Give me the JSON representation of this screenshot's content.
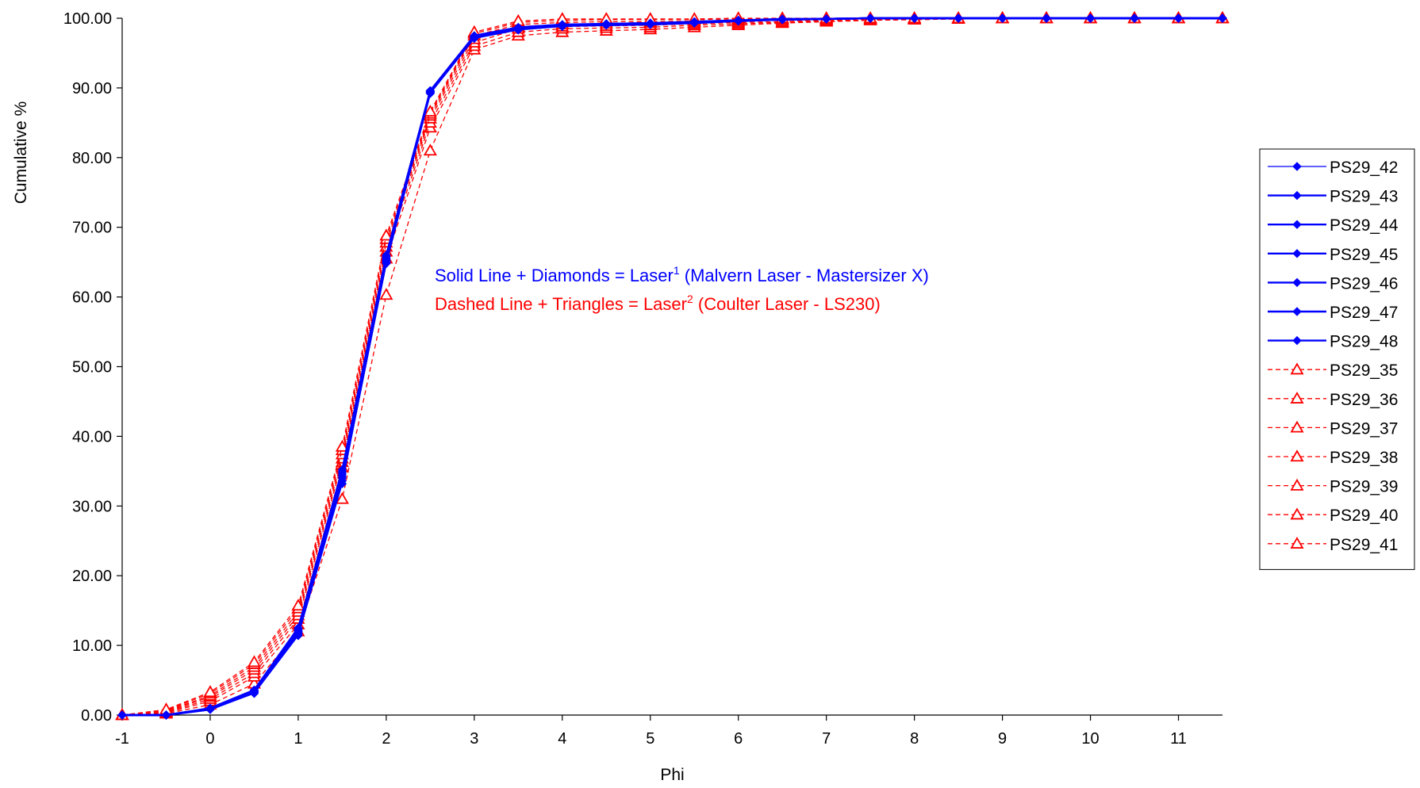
{
  "chart_data": {
    "type": "line",
    "title": "",
    "xlabel": "Phi",
    "ylabel": "Cumulative %",
    "xlim": [
      -1,
      11.5
    ],
    "ylim": [
      0,
      100
    ],
    "x_ticks": [
      "-1",
      "0",
      "1",
      "2",
      "3",
      "4",
      "5",
      "6",
      "7",
      "8",
      "9",
      "10",
      "11"
    ],
    "y_ticks": [
      "0.00",
      "10.00",
      "20.00",
      "30.00",
      "40.00",
      "50.00",
      "60.00",
      "70.00",
      "80.00",
      "90.00",
      "100.00"
    ],
    "grid": false,
    "legend_position": "right",
    "x": [
      -1,
      -0.5,
      0,
      0.5,
      1,
      1.5,
      2,
      2.5,
      3,
      3.5,
      4,
      4.5,
      5,
      5.5,
      6,
      6.5,
      7,
      7.5,
      8,
      8.5,
      9,
      9.5,
      10,
      10.5,
      11,
      11.5
    ],
    "colors": {
      "laser1": "#0000ff",
      "laser2": "#ff0000"
    },
    "annotations": [
      {
        "prefix": "Solid Line + Diamonds = Laser",
        "sup": "1",
        "suffix": " (Malvern Laser - Mastersizer X)",
        "color": "#0000ff"
      },
      {
        "prefix": "Dashed Line + Triangles = Laser",
        "sup": "2",
        "suffix": " (Coulter Laser - LS230)",
        "color": "#ff0000"
      }
    ],
    "series": [
      {
        "name": "PS29_42",
        "style": "solid",
        "marker": "diamond",
        "color": "#0000ff",
        "values": [
          0,
          0,
          0.8,
          3.1,
          11.4,
          33.2,
          64.8,
          89.2,
          97.1,
          98.3,
          98.8,
          99.0,
          99.1,
          99.3,
          99.6,
          99.8,
          99.9,
          100,
          100,
          100,
          100,
          100,
          100,
          100,
          100,
          100
        ]
      },
      {
        "name": "PS29_43",
        "style": "solid",
        "marker": "diamond",
        "color": "#0000ff",
        "values": [
          0,
          0,
          0.8,
          3.2,
          11.6,
          33.6,
          65.0,
          89.3,
          97.2,
          98.4,
          98.9,
          99.0,
          99.1,
          99.3,
          99.6,
          99.8,
          99.9,
          100,
          100,
          100,
          100,
          100,
          100,
          100,
          100,
          100
        ]
      },
      {
        "name": "PS29_44",
        "style": "solid",
        "marker": "diamond",
        "color": "#0000ff",
        "values": [
          0,
          0,
          0.8,
          3.3,
          11.8,
          34.0,
          65.2,
          89.4,
          97.3,
          98.5,
          98.9,
          99.1,
          99.2,
          99.4,
          99.6,
          99.8,
          99.9,
          100,
          100,
          100,
          100,
          100,
          100,
          100,
          100,
          100
        ]
      },
      {
        "name": "PS29_45",
        "style": "solid",
        "marker": "diamond",
        "color": "#0000ff",
        "values": [
          0,
          0,
          0.9,
          3.4,
          12.0,
          34.3,
          65.4,
          89.5,
          97.3,
          98.5,
          99.0,
          99.1,
          99.2,
          99.4,
          99.7,
          99.8,
          99.9,
          100,
          100,
          100,
          100,
          100,
          100,
          100,
          100,
          100
        ]
      },
      {
        "name": "PS29_46",
        "style": "solid",
        "marker": "diamond",
        "color": "#0000ff",
        "values": [
          0,
          0,
          0.9,
          3.4,
          12.1,
          34.6,
          65.6,
          89.5,
          97.4,
          98.6,
          99.0,
          99.2,
          99.3,
          99.4,
          99.7,
          99.8,
          99.9,
          100,
          100,
          100,
          100,
          100,
          100,
          100,
          100,
          100
        ]
      },
      {
        "name": "PS29_47",
        "style": "solid",
        "marker": "diamond",
        "color": "#0000ff",
        "values": [
          0,
          0,
          0.9,
          3.5,
          12.3,
          34.9,
          65.8,
          89.6,
          97.4,
          98.6,
          99.0,
          99.2,
          99.3,
          99.5,
          99.7,
          99.8,
          99.9,
          100,
          100,
          100,
          100,
          100,
          100,
          100,
          100,
          100
        ]
      },
      {
        "name": "PS29_48",
        "style": "solid",
        "marker": "diamond",
        "color": "#0000ff",
        "values": [
          0,
          0,
          1.0,
          3.6,
          12.5,
          35.2,
          66.0,
          89.6,
          97.5,
          98.7,
          99.1,
          99.2,
          99.3,
          99.5,
          99.7,
          99.9,
          99.9,
          100,
          100,
          100,
          100,
          100,
          100,
          100,
          100,
          100
        ]
      },
      {
        "name": "PS29_35",
        "style": "dashed",
        "marker": "triangle",
        "color": "#ff0000",
        "values": [
          0,
          0.2,
          1.5,
          4.5,
          12.0,
          31.0,
          60.3,
          81.0,
          95.5,
          97.5,
          98.0,
          98.2,
          98.4,
          98.7,
          99.0,
          99.3,
          99.5,
          99.7,
          99.8,
          99.9,
          100,
          100,
          100,
          100,
          100,
          100
        ]
      },
      {
        "name": "PS29_36",
        "style": "dashed",
        "marker": "triangle",
        "color": "#ff0000",
        "values": [
          0,
          0.3,
          2.0,
          5.5,
          13.0,
          35.5,
          65.5,
          84.3,
          96.0,
          98.0,
          98.5,
          98.6,
          98.7,
          99.0,
          99.2,
          99.4,
          99.6,
          99.7,
          99.8,
          99.9,
          100,
          100,
          100,
          100,
          100,
          100
        ]
      },
      {
        "name": "PS29_37",
        "style": "dashed",
        "marker": "triangle",
        "color": "#ff0000",
        "values": [
          0,
          0.4,
          2.3,
          6.0,
          13.8,
          36.3,
          66.5,
          85.0,
          96.5,
          98.5,
          98.8,
          98.9,
          99.0,
          99.2,
          99.4,
          99.5,
          99.7,
          99.8,
          99.9,
          99.9,
          100,
          100,
          100,
          100,
          100,
          100
        ]
      },
      {
        "name": "PS29_38",
        "style": "dashed",
        "marker": "triangle",
        "color": "#ff0000",
        "values": [
          0,
          0.5,
          2.6,
          6.5,
          14.3,
          36.8,
          67.2,
          85.6,
          97.0,
          98.8,
          99.1,
          99.2,
          99.3,
          99.4,
          99.6,
          99.7,
          99.8,
          99.9,
          99.9,
          100,
          100,
          100,
          100,
          100,
          100,
          100
        ]
      },
      {
        "name": "PS29_39",
        "style": "dashed",
        "marker": "triangle",
        "color": "#ff0000",
        "values": [
          0,
          0.6,
          2.8,
          6.9,
          14.8,
          37.4,
          67.8,
          86.0,
          97.5,
          99.1,
          99.4,
          99.5,
          99.5,
          99.6,
          99.7,
          99.8,
          99.9,
          99.9,
          100,
          100,
          100,
          100,
          100,
          100,
          100,
          100
        ]
      },
      {
        "name": "PS29_40",
        "style": "dashed",
        "marker": "triangle",
        "color": "#ff0000",
        "values": [
          0,
          0.7,
          3.1,
          7.3,
          15.3,
          38.0,
          68.3,
          86.3,
          97.8,
          99.4,
          99.7,
          99.8,
          99.8,
          99.8,
          99.9,
          99.9,
          100,
          100,
          100,
          100,
          100,
          100,
          100,
          100,
          100,
          100
        ]
      },
      {
        "name": "PS29_41",
        "style": "dashed",
        "marker": "triangle",
        "color": "#ff0000",
        "values": [
          0,
          0.8,
          3.3,
          7.6,
          15.7,
          38.5,
          68.8,
          86.6,
          98.0,
          99.6,
          99.9,
          99.9,
          99.9,
          99.9,
          100,
          100,
          100,
          100,
          100,
          100,
          100,
          100,
          100,
          100,
          100,
          100
        ]
      }
    ]
  }
}
